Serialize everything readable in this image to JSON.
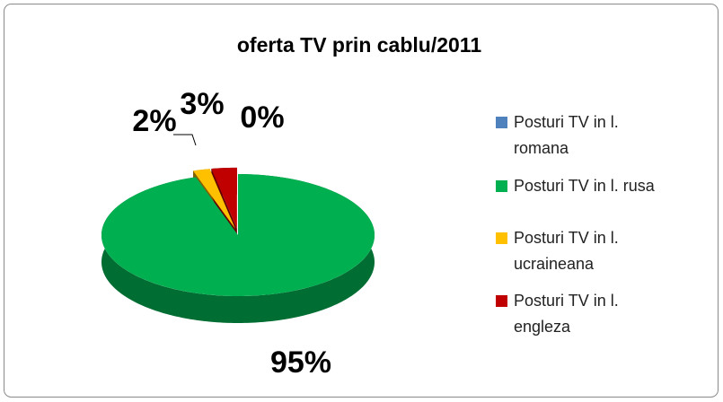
{
  "chart_data": {
    "type": "pie3d",
    "title": "oferta TV prin cablu/2011",
    "categories": [
      "Posturi TV in l. romana",
      "Posturi TV in l. rusa",
      "Posturi TV in l. ucraineana",
      "Posturi TV in l. engleza"
    ],
    "values": [
      0,
      95,
      2,
      3
    ],
    "value_labels": [
      "0%",
      "95%",
      "2%",
      "3%"
    ],
    "colors": [
      "#4f81bd",
      "#00b050",
      "#ffc000",
      "#c00000"
    ],
    "legend": "right"
  }
}
